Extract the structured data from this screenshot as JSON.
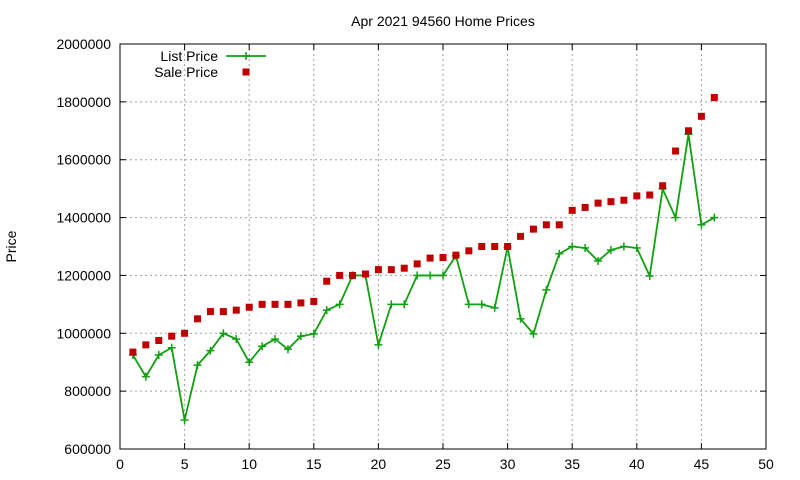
{
  "chart_data": {
    "type": "scatter",
    "title": "Apr 2021 94560 Home Prices",
    "xlabel": "",
    "ylabel": "Price",
    "xlim": [
      0,
      50
    ],
    "ylim": [
      600000,
      2000000
    ],
    "xticks": [
      0,
      5,
      10,
      15,
      20,
      25,
      30,
      35,
      40,
      45,
      50
    ],
    "yticks": [
      600000,
      800000,
      1000000,
      1200000,
      1400000,
      1600000,
      1800000,
      2000000
    ],
    "grid": true,
    "legend": "top-left",
    "series": [
      {
        "name": "List Price",
        "style": "linespoints",
        "color": "#11a011",
        "marker": "plus",
        "x": [
          1,
          2,
          3,
          4,
          5,
          6,
          7,
          8,
          9,
          10,
          11,
          12,
          13,
          14,
          15,
          16,
          17,
          18,
          19,
          20,
          21,
          22,
          23,
          24,
          25,
          26,
          27,
          28,
          29,
          30,
          31,
          32,
          33,
          34,
          35,
          36,
          37,
          38,
          39,
          40,
          41,
          42,
          43,
          44,
          45,
          46
        ],
        "y": [
          925000,
          850000,
          925000,
          950000,
          700000,
          890000,
          940000,
          1000000,
          980000,
          900000,
          955000,
          980000,
          945000,
          990000,
          998000,
          1080000,
          1100000,
          1200000,
          1200000,
          960000,
          1100000,
          1100000,
          1200000,
          1200000,
          1200000,
          1268000,
          1100000,
          1100000,
          1088000,
          1298000,
          1050000,
          998000,
          1150000,
          1275000,
          1300000,
          1295000,
          1250000,
          1288000,
          1300000,
          1295000,
          1198000,
          1499000,
          1400000,
          1688000,
          1375000,
          1400000
        ]
      },
      {
        "name": "Sale Price",
        "style": "points",
        "color": "#c00000",
        "marker": "square",
        "x": [
          1,
          2,
          3,
          4,
          5,
          6,
          7,
          8,
          9,
          10,
          11,
          12,
          13,
          14,
          15,
          16,
          17,
          18,
          19,
          20,
          21,
          22,
          23,
          24,
          25,
          26,
          27,
          28,
          29,
          30,
          31,
          32,
          33,
          34,
          35,
          36,
          37,
          38,
          39,
          40,
          41,
          42,
          43,
          44,
          45,
          46
        ],
        "y": [
          935000,
          960000,
          975000,
          990000,
          1000000,
          1050000,
          1075000,
          1075000,
          1080000,
          1090000,
          1100000,
          1100000,
          1100000,
          1105000,
          1110000,
          1180000,
          1200000,
          1200000,
          1205000,
          1220000,
          1220000,
          1225000,
          1240000,
          1260000,
          1262000,
          1270000,
          1285000,
          1300000,
          1300000,
          1300000,
          1335000,
          1360000,
          1375000,
          1375000,
          1425000,
          1435000,
          1450000,
          1455000,
          1460000,
          1475000,
          1478000,
          1510000,
          1630000,
          1700000,
          1750000,
          1815000
        ]
      }
    ]
  }
}
